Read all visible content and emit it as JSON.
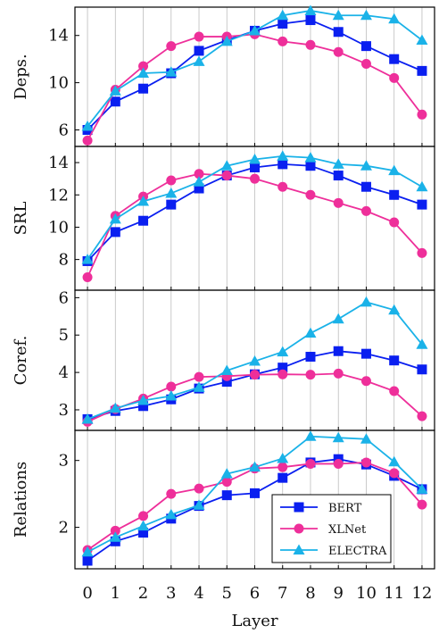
{
  "chart_data": {
    "type": "line",
    "x": [
      0,
      1,
      2,
      3,
      4,
      5,
      6,
      7,
      8,
      9,
      10,
      11,
      12
    ],
    "xlabel": "Layer",
    "grid": "vertical",
    "legend_position": "inside-bottom-right of last panel",
    "series_styles": [
      {
        "name": "BERT",
        "color": "#0a1ff0",
        "marker": "square"
      },
      {
        "name": "XLNet",
        "color": "#ee2f9a",
        "marker": "circle"
      },
      {
        "name": "ELECTRA",
        "color": "#1ab2e8",
        "marker": "triangle"
      }
    ],
    "panels": [
      {
        "ylabel": "Deps.",
        "ylim": [
          4.6,
          16.4
        ],
        "yticks": [
          6,
          10,
          14
        ],
        "series": [
          {
            "name": "BERT",
            "values": [
              6.0,
              8.4,
              9.5,
              10.8,
              12.7,
              13.6,
              14.4,
              15.0,
              15.3,
              14.3,
              13.1,
              12.0,
              11.0
            ]
          },
          {
            "name": "XLNet",
            "values": [
              5.1,
              9.4,
              11.4,
              13.1,
              13.9,
              13.9,
              14.1,
              13.5,
              13.2,
              12.6,
              11.6,
              10.4,
              7.3
            ]
          },
          {
            "name": "ELECTRA",
            "values": [
              6.3,
              9.3,
              10.8,
              10.9,
              11.8,
              13.5,
              14.4,
              15.7,
              16.1,
              15.7,
              15.7,
              15.4,
              13.6
            ]
          }
        ]
      },
      {
        "ylabel": "SRL",
        "ylim": [
          6.1,
          15.0
        ],
        "yticks": [
          8,
          10,
          12,
          14
        ],
        "series": [
          {
            "name": "BERT",
            "values": [
              7.9,
              9.7,
              10.4,
              11.4,
              12.4,
              13.2,
              13.7,
              13.9,
              13.8,
              13.2,
              12.5,
              12.0,
              11.4
            ]
          },
          {
            "name": "XLNet",
            "values": [
              6.9,
              10.7,
              11.9,
              12.9,
              13.3,
              13.2,
              13.0,
              12.5,
              12.0,
              11.5,
              11.0,
              10.3,
              8.4
            ]
          },
          {
            "name": "ELECTRA",
            "values": [
              8.0,
              10.5,
              11.6,
              12.1,
              12.8,
              13.8,
              14.2,
              14.4,
              14.3,
              13.9,
              13.8,
              13.5,
              12.5
            ]
          }
        ]
      },
      {
        "ylabel": "Coref.",
        "ylim": [
          2.45,
          6.2
        ],
        "yticks": [
          3,
          4,
          5,
          6
        ],
        "series": [
          {
            "name": "BERT",
            "values": [
              2.75,
              2.97,
              3.1,
              3.28,
              3.57,
              3.75,
              3.95,
              4.13,
              4.42,
              4.57,
              4.5,
              4.32,
              4.08
            ]
          },
          {
            "name": "XLNet",
            "values": [
              2.68,
              3.02,
              3.3,
              3.62,
              3.88,
              3.9,
              3.94,
              3.95,
              3.94,
              3.97,
              3.77,
              3.5,
              2.83
            ]
          },
          {
            "name": "ELECTRA",
            "values": [
              2.75,
              3.04,
              3.25,
              3.37,
              3.6,
              4.05,
              4.3,
              4.55,
              5.05,
              5.43,
              5.88,
              5.67,
              4.75
            ]
          }
        ]
      },
      {
        "ylabel": "Relations",
        "ylim": [
          1.38,
          3.45
        ],
        "yticks": [
          2,
          3
        ],
        "series": [
          {
            "name": "BERT",
            "values": [
              1.5,
              1.79,
              1.92,
              2.13,
              2.32,
              2.48,
              2.51,
              2.74,
              2.97,
              3.02,
              2.94,
              2.77,
              2.57
            ]
          },
          {
            "name": "XLNet",
            "values": [
              1.66,
              1.95,
              2.17,
              2.5,
              2.58,
              2.68,
              2.88,
              2.9,
              2.95,
              2.95,
              2.97,
              2.81,
              2.34
            ]
          },
          {
            "name": "ELECTRA",
            "values": [
              1.63,
              1.85,
              2.02,
              2.19,
              2.33,
              2.8,
              2.9,
              3.03,
              3.36,
              3.34,
              3.32,
              2.98,
              2.57
            ]
          }
        ]
      }
    ]
  }
}
